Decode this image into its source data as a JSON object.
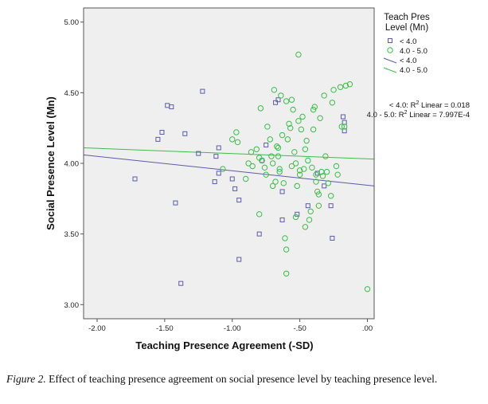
{
  "chart_data": {
    "type": "scatter",
    "xlabel": "Teaching Presence Agreement (-SD)",
    "ylabel": "Social Presence Level (Mn)",
    "xlim": [
      -2.1,
      0.05
    ],
    "ylim": [
      2.9,
      5.1
    ],
    "xticks": [
      -2.0,
      -1.5,
      -1.0,
      -0.5,
      0.0
    ],
    "xtick_labels": [
      "-2.00",
      "-1.50",
      "-1.00",
      "-.50",
      ".00"
    ],
    "yticks": [
      3.0,
      3.5,
      4.0,
      4.5,
      5.0
    ],
    "ytick_labels": [
      "3.00",
      "3.50",
      "4.00",
      "4.50",
      "5.00"
    ],
    "legend": {
      "title_line1": "Teach Pres",
      "title_line2": "Level (Mn)",
      "entries": [
        {
          "label": "< 4.0",
          "kind": "square-marker"
        },
        {
          "label": "4.0 - 5.0",
          "kind": "circle-marker"
        },
        {
          "label": "< 4.0",
          "kind": "fit-line-low"
        },
        {
          "label": "4.0 - 5.0",
          "kind": "fit-line-high"
        }
      ]
    },
    "r2_annotations": [
      {
        "prefix": "< 4.0: R",
        "sup": "2",
        "suffix": " Linear = 0.018"
      },
      {
        "prefix": "4.0 - 5.0: R",
        "sup": "2",
        "suffix": " Linear = 7.997E-4"
      }
    ],
    "colors": {
      "low": "#5b5bab",
      "high": "#3dbd4a",
      "plot_bg": "#efefef"
    },
    "series": [
      {
        "name": "< 4.0",
        "marker": "square",
        "fit_line": {
          "x": [
            -2.1,
            0.05
          ],
          "y": [
            4.06,
            3.84
          ]
        },
        "points": [
          [
            -1.72,
            3.89
          ],
          [
            -1.55,
            4.17
          ],
          [
            -1.52,
            4.22
          ],
          [
            -1.48,
            4.41
          ],
          [
            -1.45,
            4.4
          ],
          [
            -1.42,
            3.72
          ],
          [
            -1.38,
            3.15
          ],
          [
            -1.35,
            4.21
          ],
          [
            -1.25,
            4.07
          ],
          [
            -1.22,
            4.51
          ],
          [
            -1.13,
            3.87
          ],
          [
            -1.12,
            4.05
          ],
          [
            -1.1,
            4.11
          ],
          [
            -1.1,
            3.93
          ],
          [
            -1.0,
            3.89
          ],
          [
            -0.98,
            3.82
          ],
          [
            -0.95,
            3.74
          ],
          [
            -0.95,
            3.32
          ],
          [
            -0.8,
            3.5
          ],
          [
            -0.78,
            4.02
          ],
          [
            -0.75,
            4.13
          ],
          [
            -0.68,
            4.43
          ],
          [
            -0.66,
            4.45
          ],
          [
            -0.63,
            3.6
          ],
          [
            -0.63,
            3.8
          ],
          [
            -0.52,
            3.64
          ],
          [
            -0.44,
            3.7
          ],
          [
            -0.37,
            3.93
          ],
          [
            -0.32,
            3.84
          ],
          [
            -0.27,
            3.7
          ],
          [
            -0.26,
            3.47
          ],
          [
            -0.18,
            4.33
          ],
          [
            -0.17,
            4.29
          ],
          [
            -0.17,
            4.23
          ]
        ]
      },
      {
        "name": "4.0 - 5.0",
        "marker": "circle",
        "fit_line": {
          "x": [
            -2.1,
            0.05
          ],
          "y": [
            4.11,
            4.03
          ]
        },
        "points": [
          [
            -1.07,
            3.96
          ],
          [
            -1.0,
            4.17
          ],
          [
            -0.97,
            4.22
          ],
          [
            -0.96,
            4.15
          ],
          [
            -0.9,
            3.89
          ],
          [
            -0.88,
            4.0
          ],
          [
            -0.86,
            4.08
          ],
          [
            -0.85,
            3.98
          ],
          [
            -0.82,
            4.1
          ],
          [
            -0.8,
            4.04
          ],
          [
            -0.8,
            3.64
          ],
          [
            -0.79,
            4.39
          ],
          [
            -0.78,
            4.02
          ],
          [
            -0.76,
            3.97
          ],
          [
            -0.74,
            4.26
          ],
          [
            -0.72,
            4.17
          ],
          [
            -0.71,
            4.05
          ],
          [
            -0.7,
            4.0
          ],
          [
            -0.7,
            3.84
          ],
          [
            -0.69,
            4.52
          ],
          [
            -0.68,
            3.87
          ],
          [
            -0.66,
            4.11
          ],
          [
            -0.66,
            4.05
          ],
          [
            -0.65,
            3.96
          ],
          [
            -0.65,
            3.94
          ],
          [
            -0.64,
            4.48
          ],
          [
            -0.63,
            4.2
          ],
          [
            -0.62,
            3.86
          ],
          [
            -0.61,
            3.47
          ],
          [
            -0.6,
            3.39
          ],
          [
            -0.6,
            3.22
          ],
          [
            -0.6,
            4.44
          ],
          [
            -0.59,
            4.17
          ],
          [
            -0.58,
            4.28
          ],
          [
            -0.57,
            4.25
          ],
          [
            -0.56,
            4.45
          ],
          [
            -0.56,
            3.98
          ],
          [
            -0.55,
            4.38
          ],
          [
            -0.54,
            4.08
          ],
          [
            -0.53,
            4.0
          ],
          [
            -0.53,
            3.62
          ],
          [
            -0.52,
            3.84
          ],
          [
            -0.51,
            4.3
          ],
          [
            -0.51,
            4.77
          ],
          [
            -0.5,
            3.95
          ],
          [
            -0.5,
            3.92
          ],
          [
            -0.49,
            4.24
          ],
          [
            -0.48,
            4.33
          ],
          [
            -0.47,
            3.96
          ],
          [
            -0.46,
            4.1
          ],
          [
            -0.46,
            3.55
          ],
          [
            -0.45,
            4.16
          ],
          [
            -0.44,
            4.02
          ],
          [
            -0.43,
            3.6
          ],
          [
            -0.42,
            3.66
          ],
          [
            -0.41,
            3.97
          ],
          [
            -0.4,
            4.38
          ],
          [
            -0.4,
            4.24
          ],
          [
            -0.39,
            4.4
          ],
          [
            -0.38,
            3.92
          ],
          [
            -0.38,
            3.87
          ],
          [
            -0.37,
            3.8
          ],
          [
            -0.36,
            3.78
          ],
          [
            -0.36,
            3.7
          ],
          [
            -0.35,
            4.32
          ],
          [
            -0.34,
            3.94
          ],
          [
            -0.33,
            3.91
          ],
          [
            -0.32,
            4.48
          ],
          [
            -0.31,
            4.05
          ],
          [
            -0.3,
            3.94
          ],
          [
            -0.29,
            3.86
          ],
          [
            -0.27,
            3.77
          ],
          [
            -0.26,
            4.43
          ],
          [
            -0.25,
            4.52
          ],
          [
            -0.23,
            3.98
          ],
          [
            -0.22,
            3.92
          ],
          [
            -0.2,
            4.54
          ],
          [
            -0.19,
            4.26
          ],
          [
            -0.17,
            4.26
          ],
          [
            -0.16,
            4.55
          ],
          [
            -0.13,
            4.56
          ],
          [
            0.0,
            3.11
          ],
          [
            -0.75,
            3.92
          ],
          [
            -0.67,
            4.12
          ]
        ]
      }
    ]
  },
  "caption": {
    "lead": "Figure 2.",
    "text": " Effect of teaching presence agreement on social presence level by teaching presence level."
  }
}
